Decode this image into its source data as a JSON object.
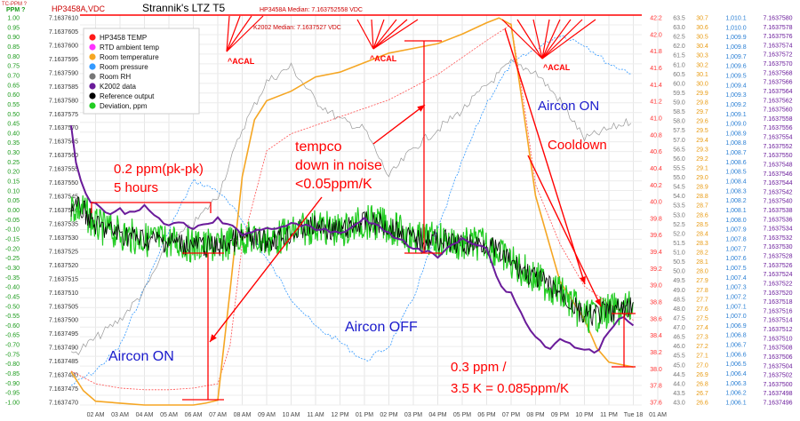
{
  "chart_data": {
    "type": "line",
    "title": "Strannik's LTZ T5",
    "header_left_top": "TC-PPM ?",
    "header_left_bottom": "PPM ?",
    "header_series_label": "HP3458A,VDC",
    "median_hp": "HP3458A Median: 7.163752558 VDC",
    "median_k2002": "K2002 Median: 7.1637527 VDC",
    "legend": [
      {
        "name": "HP3458 TEMP",
        "color": "#ff1a1a"
      },
      {
        "name": "RTD ambient temp",
        "color": "#ff33ff"
      },
      {
        "name": "Room temperature",
        "color": "#f5a623"
      },
      {
        "name": "Room pressure",
        "color": "#3399ff"
      },
      {
        "name": "Room RH",
        "color": "#777777"
      },
      {
        "name": "K2002 data",
        "color": "#6a1b9a"
      },
      {
        "name": "Reference output",
        "color": "#000000"
      },
      {
        "name": "Deviation, ppm",
        "color": "#22cc22"
      }
    ],
    "x_ticks": [
      "02 AM",
      "03 AM",
      "04 AM",
      "05 AM",
      "06 AM",
      "07 AM",
      "08 AM",
      "09 AM",
      "10 AM",
      "11 AM",
      "12 PM",
      "01 PM",
      "02 PM",
      "03 PM",
      "04 PM",
      "05 PM",
      "06 PM",
      "07 PM",
      "08 PM",
      "09 PM",
      "10 PM",
      "11 PM",
      "Tue 18",
      "01 AM"
    ],
    "ppm_axis": {
      "range": [
        -1.0,
        1.0
      ],
      "ticks": [
        "1.00",
        "0.95",
        "0.90",
        "0.85",
        "0.80",
        "0.75",
        "0.70",
        "0.65",
        "0.60",
        "0.55",
        "0.50",
        "0.45",
        "0.40",
        "0.35",
        "0.30",
        "0.25",
        "0.20",
        "0.15",
        "0.10",
        "0.05",
        "0.00",
        "-0.05",
        "-0.10",
        "-0.15",
        "-0.20",
        "-0.25",
        "-0.30",
        "-0.35",
        "-0.40",
        "-0.45",
        "-0.50",
        "-0.55",
        "-0.60",
        "-0.65",
        "-0.70",
        "-0.75",
        "-0.80",
        "-0.85",
        "-0.90",
        "-0.95",
        "-1.00"
      ]
    },
    "vdc_axis": {
      "range": [
        7.163747,
        7.163761
      ],
      "ticks": [
        "7.1637610",
        "7.1637605",
        "7.1637600",
        "7.1637595",
        "7.1637590",
        "7.1637585",
        "7.1637580",
        "7.1637575",
        "7.1637570",
        "7.1637565",
        "7.1637560",
        "7.1637555",
        "7.1637550",
        "7.1637545",
        "7.1637540",
        "7.1637535",
        "7.1637530",
        "7.1637525",
        "7.1637520",
        "7.1637515",
        "7.1637510",
        "7.1637505",
        "7.1637500",
        "7.1637495",
        "7.1637490",
        "7.1637485",
        "7.1637480",
        "7.1637475",
        "7.1637470"
      ]
    },
    "hp_temp_axis": {
      "range": [
        37.6,
        42.2
      ],
      "ticks": [
        "42.2",
        "42.0",
        "41.8",
        "41.6",
        "41.4",
        "41.2",
        "41.0",
        "40.8",
        "40.6",
        "40.4",
        "40.2",
        "40.0",
        "39.8",
        "39.6",
        "39.4",
        "39.2",
        "39.0",
        "38.8",
        "38.6",
        "38.4",
        "38.2",
        "38.0",
        "37.8",
        "37.6"
      ]
    },
    "rh_axis": {
      "range": [
        43.0,
        63.5
      ],
      "ticks": [
        "63.5",
        "63.0",
        "62.5",
        "62.0",
        "61.5",
        "61.0",
        "60.5",
        "60.0",
        "59.5",
        "59.0",
        "58.5",
        "58.0",
        "57.5",
        "57.0",
        "56.5",
        "56.0",
        "55.5",
        "55.0",
        "54.5",
        "54.0",
        "53.5",
        "53.0",
        "52.5",
        "52.0",
        "51.5",
        "51.0",
        "50.5",
        "50.0",
        "49.5",
        "49.0",
        "48.5",
        "48.0",
        "47.5",
        "47.0",
        "46.5",
        "46.0",
        "45.5",
        "45.0",
        "44.5",
        "44.0",
        "43.5",
        "43.0"
      ]
    },
    "room_temp_axis": {
      "range": [
        26.6,
        30.7
      ],
      "ticks": [
        "30.7",
        "30.6",
        "30.5",
        "30.4",
        "30.3",
        "30.2",
        "30.1",
        "30.0",
        "29.9",
        "29.8",
        "29.7",
        "29.6",
        "29.5",
        "29.4",
        "29.3",
        "29.2",
        "29.1",
        "29.0",
        "28.9",
        "28.8",
        "28.7",
        "28.6",
        "28.5",
        "28.4",
        "28.3",
        "28.2",
        "28.1",
        "28.0",
        "27.9",
        "27.8",
        "27.7",
        "27.6",
        "27.5",
        "27.4",
        "27.3",
        "27.2",
        "27.1",
        "27.0",
        "26.9",
        "26.8",
        "26.7",
        "26.6"
      ]
    },
    "pressure_axis": {
      "range": [
        1006.1,
        1010.1
      ],
      "ticks": [
        "1,010.1",
        "1,010.0",
        "1,009.9",
        "1,009.8",
        "1,009.7",
        "1,009.6",
        "1,009.5",
        "1,009.4",
        "1,009.3",
        "1,009.2",
        "1,009.1",
        "1,009.0",
        "1,008.9",
        "1,008.8",
        "1,008.7",
        "1,008.6",
        "1,008.5",
        "1,008.4",
        "1,008.3",
        "1,008.2",
        "1,008.1",
        "1,008.0",
        "1,007.9",
        "1,007.8",
        "1,007.7",
        "1,007.6",
        "1,007.5",
        "1,007.4",
        "1,007.3",
        "1,007.2",
        "1,007.1",
        "1,007.0",
        "1,006.9",
        "1,006.8",
        "1,006.7",
        "1,006.6",
        "1,006.5",
        "1,006.4",
        "1,006.3",
        "1,006.2",
        "1,006.1"
      ]
    },
    "k2002_axis": {
      "range": [
        7.1637496,
        7.163758
      ],
      "ticks": [
        "7.1637580",
        "7.1637578",
        "7.1637576",
        "7.1637574",
        "7.1637572",
        "7.1637570",
        "7.1637568",
        "7.1637566",
        "7.1637564",
        "7.1637562",
        "7.1637560",
        "7.1637558",
        "7.1637556",
        "7.1637554",
        "7.1637552",
        "7.1637550",
        "7.1637548",
        "7.1637546",
        "7.1637544",
        "7.1637542",
        "7.1637540",
        "7.1637538",
        "7.1637536",
        "7.1637534",
        "7.1637532",
        "7.1637530",
        "7.1637528",
        "7.1637526",
        "7.1637524",
        "7.1637522",
        "7.1637520",
        "7.1637518",
        "7.1637516",
        "7.1637514",
        "7.1637512",
        "7.1637510",
        "7.1637508",
        "7.1637506",
        "7.1637504",
        "7.1637502",
        "7.1637500",
        "7.1637498",
        "7.1637496"
      ]
    },
    "series": [
      {
        "name": "Room temperature",
        "color": "#f5a623",
        "x": [
          0,
          0.5,
          1,
          2,
          3,
          4,
          5,
          5.5,
          6,
          6.5,
          7,
          7.5,
          8,
          9,
          10,
          11,
          12,
          13,
          14,
          15,
          16,
          17,
          17.5,
          18,
          19,
          20,
          21,
          21.5,
          22,
          23
        ],
        "values": [
          26.95,
          26.75,
          26.64,
          26.62,
          26.6,
          26.6,
          26.6,
          26.62,
          26.65,
          27.8,
          29.0,
          29.6,
          29.8,
          29.9,
          30.05,
          30.1,
          30.2,
          30.3,
          30.35,
          30.4,
          30.5,
          30.62,
          30.67,
          30.6,
          28.8,
          27.9,
          27.5,
          27.2,
          27.05,
          27.0
        ]
      },
      {
        "name": "HP3458 TEMP",
        "color": "#ff4d4d",
        "x": [
          0,
          1,
          2,
          3,
          4,
          5,
          6,
          6.5,
          7,
          8,
          9,
          10,
          11,
          12,
          13,
          14,
          15,
          16,
          17,
          17.8,
          18,
          18.5,
          19,
          20,
          21,
          22,
          23
        ],
        "values": [
          38.0,
          37.85,
          37.8,
          37.78,
          37.78,
          37.8,
          37.85,
          38.3,
          39.5,
          40.6,
          40.8,
          40.9,
          41.0,
          41.1,
          41.2,
          41.35,
          41.5,
          41.7,
          41.9,
          42.05,
          42.1,
          41.2,
          40.2,
          39.5,
          39.0,
          38.8,
          38.6
        ]
      },
      {
        "name": "Room RH",
        "color": "#888888",
        "x": [
          0,
          1,
          2,
          3,
          4,
          5,
          6,
          7,
          8,
          9,
          10,
          11,
          12,
          13,
          14,
          15,
          16,
          17,
          18,
          19,
          20,
          21,
          22,
          23
        ],
        "values": [
          45.6,
          46.5,
          47.5,
          49.0,
          51.5,
          52.5,
          54.0,
          57.5,
          60.0,
          60.8,
          59.0,
          58.0,
          57.5,
          55.0,
          56.5,
          57.5,
          58.5,
          59.8,
          61.0,
          60.5,
          59.0,
          57.0,
          57.5,
          58.0
        ]
      },
      {
        "name": "Room pressure",
        "color": "#3399ff",
        "x": [
          0,
          1,
          2,
          3,
          4,
          5,
          6,
          7,
          8,
          9,
          10,
          11,
          12,
          13,
          14,
          15,
          16,
          17,
          18,
          19,
          20,
          21,
          22,
          23
        ],
        "values": [
          1006.3,
          1006.45,
          1006.7,
          1007.3,
          1007.9,
          1008.4,
          1008.3,
          1008.0,
          1007.6,
          1007.2,
          1006.9,
          1006.75,
          1006.55,
          1006.7,
          1007.2,
          1007.9,
          1008.6,
          1009.2,
          1009.6,
          1009.75,
          1009.9,
          1009.8,
          1009.6,
          1009.5
        ]
      },
      {
        "name": "K2002 data",
        "color": "#6a1b9a",
        "x": [
          0,
          0.3,
          0.8,
          1.5,
          2,
          2.5,
          3,
          3.5,
          4,
          4.5,
          5,
          5.5,
          6,
          7,
          8,
          9,
          10,
          11,
          12,
          13,
          14,
          15,
          16,
          17,
          17.5,
          18,
          18.8,
          19.5,
          20,
          21,
          21.5,
          22,
          22.5,
          23
        ],
        "values": [
          7.1637556,
          7.1637545,
          7.163754,
          7.1637537,
          7.1637538,
          7.1637537,
          7.1637539,
          7.1637536,
          7.1637535,
          7.1637535,
          7.1637534,
          7.1637535,
          7.1637536,
          7.1637533,
          7.1637534,
          7.1637535,
          7.1637534,
          7.1637533,
          7.1637536,
          7.1637533,
          7.163753,
          7.1637528,
          7.1637532,
          7.163753,
          7.1637522,
          7.163752,
          7.1637512,
          7.1637508,
          7.163751,
          7.1637508,
          7.1637507,
          7.1637512,
          7.1637515,
          7.1637513
        ]
      },
      {
        "name": "Deviation, ppm",
        "color": "#22cc22",
        "x": [
          0,
          0.5,
          1,
          2,
          3,
          4,
          5,
          6,
          7,
          8,
          9,
          10,
          11,
          12,
          13,
          14,
          15,
          16,
          17,
          18,
          19,
          20,
          21,
          22,
          23
        ],
        "values": [
          0.02,
          0.0,
          -0.08,
          -0.12,
          -0.15,
          -0.16,
          -0.18,
          -0.19,
          -0.14,
          -0.16,
          -0.12,
          -0.08,
          -0.11,
          -0.06,
          -0.08,
          -0.15,
          -0.15,
          -0.18,
          -0.17,
          -0.27,
          -0.35,
          -0.42,
          -0.55,
          -0.52,
          -0.5
        ]
      }
    ],
    "annotations": [
      {
        "text": "^ACAL",
        "color": "#ff0000"
      },
      {
        "text": "^ACAL",
        "color": "#ff0000"
      },
      {
        "text": "^ACAL",
        "color": "#ff0000"
      },
      {
        "text": "0.2 ppm(pk-pk)",
        "color": "#ff0000"
      },
      {
        "text": "5 hours",
        "color": "#ff0000"
      },
      {
        "text": "tempco",
        "color": "#ff0000"
      },
      {
        "text": "down in noise",
        "color": "#ff0000"
      },
      {
        "text": "<0.05ppm/K",
        "color": "#ff0000"
      },
      {
        "text": "Aircon ON",
        "color": "#1a1acc"
      },
      {
        "text": "Cooldown",
        "color": "#ff0000"
      },
      {
        "text": "Aircon OFF",
        "color": "#1a1acc"
      },
      {
        "text": "Aircon ON",
        "color": "#1a1acc"
      },
      {
        "text": "0.3 ppm /",
        "color": "#ff0000"
      },
      {
        "text": "3.5 K = 0.085ppm/K",
        "color": "#ff0000"
      }
    ]
  }
}
